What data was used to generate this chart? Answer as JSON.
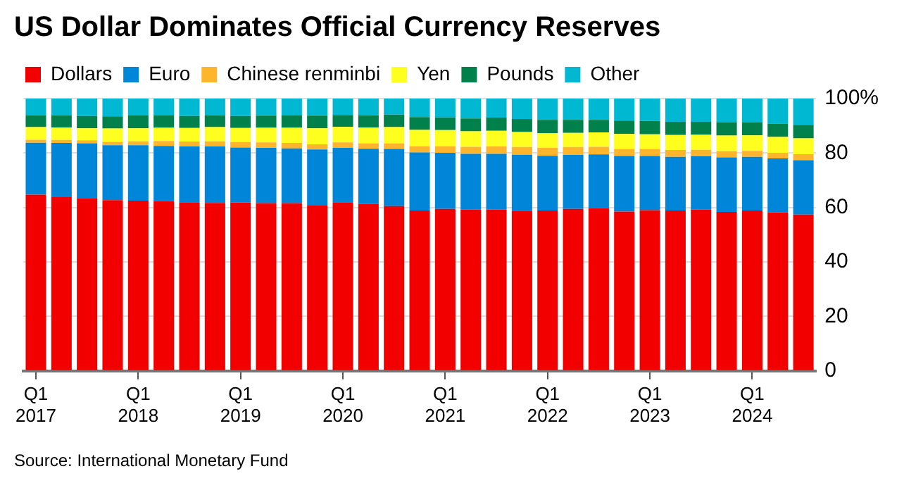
{
  "chart_data": {
    "type": "bar",
    "title": "US Dollar Dominates Official Currency Reserves",
    "stacked": true,
    "legend": "top left",
    "grid": "y",
    "categories": [
      "Q1 2017",
      null,
      null,
      null,
      "Q1 2018",
      null,
      null,
      null,
      "Q1 2019",
      null,
      null,
      null,
      "Q1 2020",
      null,
      null,
      null,
      "Q1 2021",
      null,
      null,
      null,
      "Q1 2022",
      null,
      null,
      null,
      "Q1 2023",
      null,
      null,
      null,
      "Q1 2024",
      null,
      null
    ],
    "series": [
      {
        "name": "Dollars",
        "color": "#f20000",
        "values": [
          64.7,
          63.8,
          63.5,
          62.7,
          62.5,
          62.3,
          61.9,
          61.7,
          61.8,
          61.6,
          61.6,
          60.7,
          61.9,
          61.3,
          60.5,
          58.9,
          59.5,
          59.2,
          59.2,
          58.8,
          58.9,
          59.5,
          59.8,
          58.5,
          59.0,
          58.9,
          59.2,
          58.4,
          58.9,
          58.2,
          57.4
        ]
      },
      {
        "name": "Euro",
        "color": "#0086d9",
        "values": [
          19.1,
          19.9,
          20.1,
          20.2,
          20.4,
          20.3,
          20.5,
          20.7,
          20.2,
          20.3,
          20.1,
          20.6,
          20.0,
          20.3,
          21.0,
          21.3,
          20.6,
          20.5,
          20.5,
          20.6,
          20.1,
          19.8,
          19.7,
          20.4,
          19.9,
          19.7,
          19.6,
          20.0,
          19.7,
          19.8,
          20.0
        ]
      },
      {
        "name": "Chinese renminbi",
        "color": "#ffb52b",
        "values": [
          1.1,
          1.1,
          1.1,
          1.2,
          1.4,
          1.8,
          1.8,
          1.9,
          2.0,
          2.0,
          2.0,
          1.9,
          2.0,
          2.0,
          2.1,
          2.3,
          2.4,
          2.6,
          2.7,
          2.8,
          2.9,
          2.9,
          2.8,
          2.6,
          2.6,
          2.5,
          2.4,
          2.3,
          2.2,
          2.1,
          2.2
        ]
      },
      {
        "name": "Yen",
        "color": "#ffff1f",
        "values": [
          4.6,
          4.6,
          4.4,
          4.9,
          4.8,
          4.9,
          5.0,
          5.2,
          5.2,
          5.4,
          5.6,
          5.9,
          5.7,
          5.8,
          5.9,
          6.0,
          5.9,
          5.7,
          5.8,
          5.5,
          5.4,
          5.2,
          5.3,
          5.5,
          5.4,
          5.5,
          5.5,
          5.7,
          5.7,
          5.8,
          5.8
        ]
      },
      {
        "name": "Pounds",
        "color": "#00804a",
        "values": [
          4.4,
          4.5,
          4.5,
          4.5,
          4.7,
          4.5,
          4.4,
          4.4,
          4.4,
          4.4,
          4.5,
          4.6,
          4.4,
          4.5,
          4.6,
          4.7,
          4.7,
          4.7,
          4.8,
          4.8,
          4.9,
          4.8,
          4.6,
          4.9,
          4.9,
          4.9,
          4.8,
          4.8,
          4.7,
          4.9,
          5.0
        ]
      },
      {
        "name": "Other",
        "color": "#00b8d1",
        "values": [
          6.1,
          6.1,
          6.4,
          6.5,
          6.2,
          6.2,
          6.4,
          6.1,
          6.4,
          6.3,
          6.2,
          6.3,
          6.0,
          6.1,
          5.9,
          6.8,
          6.9,
          7.3,
          7.0,
          7.5,
          7.8,
          7.8,
          7.8,
          8.1,
          8.2,
          8.5,
          8.5,
          8.8,
          8.8,
          9.2,
          9.6
        ]
      }
    ],
    "ylim": [
      0,
      100
    ],
    "yticks": [
      0,
      20,
      40,
      60,
      80,
      {
        "value": 100,
        "label": "100%"
      }
    ],
    "annotations": [
      "Source: International Monetary Fund"
    ]
  }
}
